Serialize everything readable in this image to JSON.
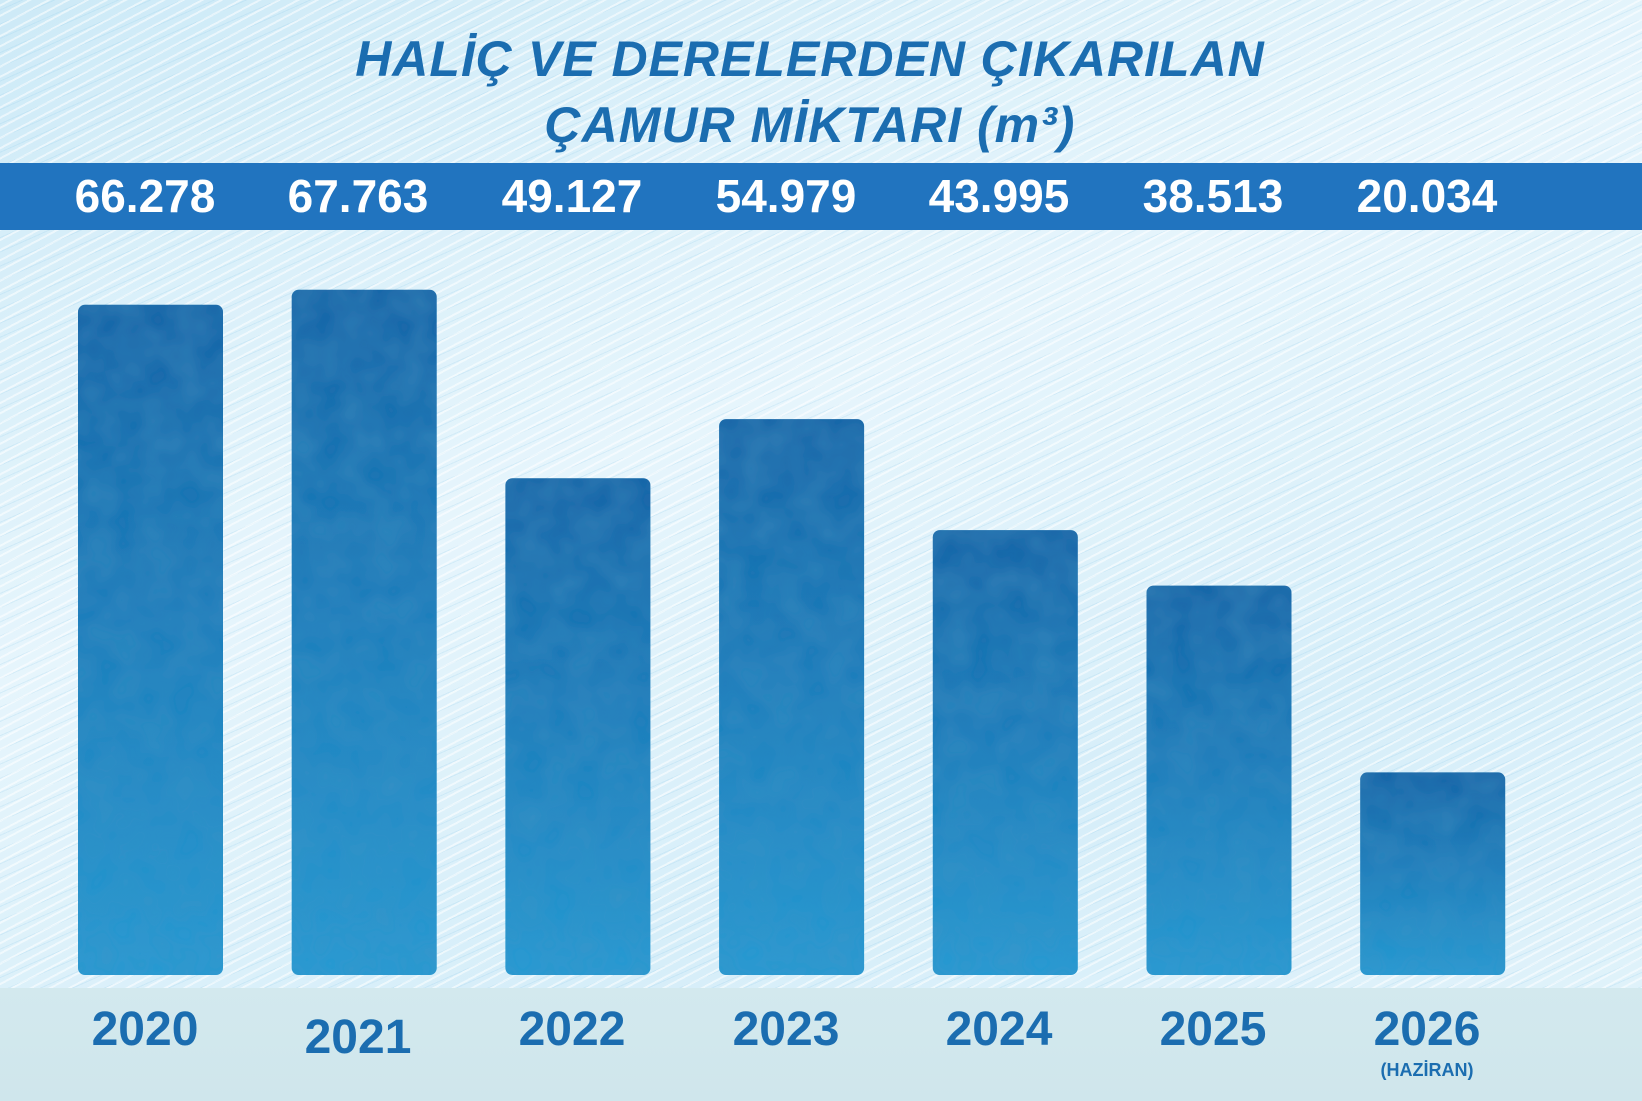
{
  "chart_data": {
    "type": "bar",
    "title": [
      "HALİÇ VE DERELERDEN ÇIKARILAN",
      "ÇAMUR MİKTARI (m³)"
    ],
    "categories": [
      "2020",
      "2021",
      "2022",
      "2023",
      "2024",
      "2025",
      "2026"
    ],
    "category_notes": [
      "",
      "",
      "",
      "",
      "",
      "",
      "(HAZİRAN)"
    ],
    "values": [
      66278,
      67763,
      49127,
      54979,
      43995,
      38513,
      20034
    ],
    "value_labels": [
      "66.278",
      "67.763",
      "49.127",
      "54.979",
      "43.995",
      "38.513",
      "20.034"
    ],
    "ylim": [
      0,
      71700
    ],
    "grid": false,
    "legend": "none",
    "colors": {
      "bar_top": "#1a66a8",
      "bar_bottom": "#2a9ad2",
      "title": "#1b6db0",
      "value_band": "#2174bf",
      "value_text": "#ffffff",
      "year_text": "#1b6db0"
    }
  }
}
